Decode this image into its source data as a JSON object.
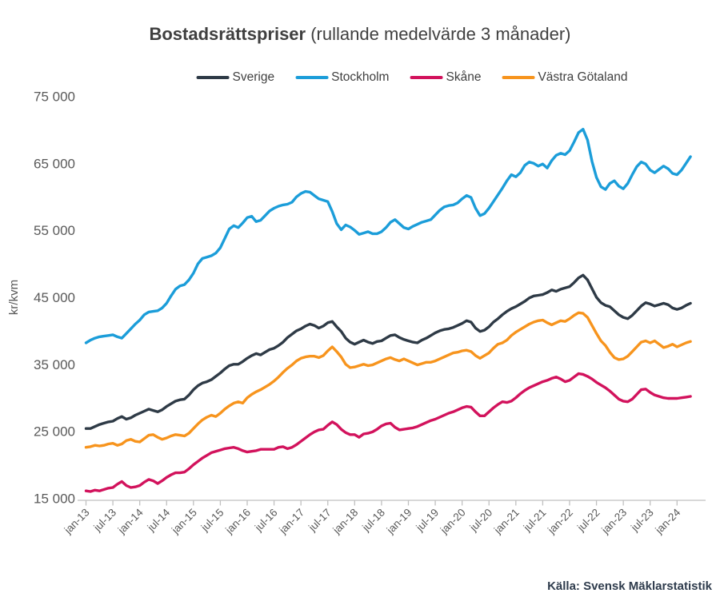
{
  "title": {
    "main": "Bostadsrättspriser",
    "suffix": " (rullande medelvärde 3 månader)"
  },
  "source": {
    "text": "Källa: Svensk Mäklarstatistik"
  },
  "legend": {
    "items": [
      {
        "label": "Sverige",
        "color": "#2e3a46"
      },
      {
        "label": "Stockholm",
        "color": "#1b9dd9"
      },
      {
        "label": "Skåne",
        "color": "#d2125c"
      },
      {
        "label": "Västra Götaland",
        "color": "#f7941d"
      }
    ]
  },
  "y_axis": {
    "label": "kr/kvm",
    "min": 15000,
    "max": 75000,
    "step": 10000,
    "tick_labels": [
      "15 000",
      "25 000",
      "35 000",
      "45 000",
      "55 000",
      "65 000",
      "75 000"
    ]
  },
  "x_axis": {
    "tick_labels": [
      "jan-13",
      "jul-13",
      "jan-14",
      "jul-14",
      "jan-15",
      "jul-15",
      "jan-16",
      "jul-16",
      "jan-17",
      "jul-17",
      "jan-18",
      "jul-18",
      "jan-19",
      "jul-19",
      "jan-20",
      "jul-20",
      "jan-21",
      "jul-21",
      "jan-22",
      "jul-22",
      "jan-23",
      "jul-23",
      "jan-24"
    ],
    "tick_interval_months": 6
  },
  "chart_data": {
    "type": "line",
    "title": "Bostadsrättspriser (rullande medelvärde 3 månader)",
    "ylabel": "kr/kvm",
    "ylim": [
      15000,
      75000
    ],
    "grid": false,
    "legend_position": "top",
    "x_unit": "month",
    "x_start": "2013-01",
    "x_end": "2024-04",
    "series": [
      {
        "name": "Sverige",
        "color": "#2e3a46",
        "values": [
          25400,
          25400,
          25700,
          26000,
          26200,
          26400,
          26500,
          26900,
          27200,
          26800,
          27000,
          27400,
          27700,
          28000,
          28300,
          28100,
          27900,
          28200,
          28700,
          29100,
          29500,
          29700,
          29800,
          30400,
          31200,
          31800,
          32200,
          32400,
          32700,
          33200,
          33700,
          34300,
          34800,
          35000,
          35000,
          35400,
          35900,
          36300,
          36600,
          36400,
          36800,
          37200,
          37400,
          37800,
          38300,
          39000,
          39500,
          40000,
          40300,
          40700,
          41000,
          40800,
          40400,
          40700,
          41200,
          41400,
          40600,
          39900,
          38900,
          38300,
          38000,
          38300,
          38600,
          38300,
          38100,
          38400,
          38500,
          38900,
          39300,
          39400,
          39000,
          38700,
          38500,
          38300,
          38200,
          38600,
          38900,
          39300,
          39700,
          40000,
          40200,
          40300,
          40500,
          40800,
          41100,
          41500,
          41300,
          40400,
          39900,
          40100,
          40600,
          41300,
          41800,
          42400,
          42900,
          43300,
          43600,
          44000,
          44400,
          44900,
          45200,
          45300,
          45400,
          45700,
          46100,
          45900,
          46200,
          46400,
          46600,
          47200,
          47900,
          48300,
          47600,
          46300,
          45000,
          44200,
          43800,
          43600,
          43000,
          42400,
          42000,
          41800,
          42300,
          43000,
          43700,
          44200,
          44000,
          43700,
          43900,
          44100,
          43900,
          43400,
          43200,
          43400,
          43800,
          44100
        ]
      },
      {
        "name": "Stockholm",
        "color": "#1b9dd9",
        "values": [
          38200,
          38600,
          38900,
          39100,
          39200,
          39300,
          39400,
          39100,
          38900,
          39600,
          40300,
          41000,
          41600,
          42400,
          42800,
          42900,
          43000,
          43400,
          44100,
          45200,
          46200,
          46700,
          46900,
          47600,
          48600,
          50000,
          50800,
          51000,
          51200,
          51600,
          52400,
          53800,
          55200,
          55700,
          55400,
          56100,
          56900,
          57100,
          56300,
          56500,
          57200,
          57900,
          58300,
          58600,
          58800,
          58900,
          59200,
          60000,
          60500,
          60800,
          60700,
          60200,
          59700,
          59500,
          59300,
          57800,
          56000,
          55100,
          55800,
          55500,
          55000,
          54400,
          54600,
          54800,
          54500,
          54500,
          54800,
          55400,
          56200,
          56600,
          56000,
          55400,
          55200,
          55600,
          55900,
          56200,
          56400,
          56600,
          57300,
          58000,
          58500,
          58700,
          58800,
          59100,
          59700,
          60200,
          59900,
          58300,
          57200,
          57500,
          58300,
          59300,
          60300,
          61300,
          62400,
          63300,
          63000,
          63600,
          64700,
          65200,
          65000,
          64600,
          64900,
          64300,
          65400,
          66200,
          66500,
          66300,
          66900,
          68200,
          69600,
          70100,
          68500,
          65300,
          62900,
          61500,
          61100,
          62000,
          62400,
          61600,
          61200,
          62000,
          63300,
          64500,
          65200,
          64900,
          64000,
          63600,
          64100,
          64600,
          64200,
          63500,
          63300,
          64000,
          65000,
          66000
        ]
      },
      {
        "name": "Skåne",
        "color": "#d2125c",
        "values": [
          16100,
          16000,
          16200,
          16100,
          16300,
          16500,
          16600,
          17100,
          17500,
          16900,
          16600,
          16700,
          16900,
          17400,
          17800,
          17600,
          17200,
          17600,
          18100,
          18500,
          18800,
          18800,
          18900,
          19400,
          20000,
          20500,
          21000,
          21400,
          21800,
          22000,
          22200,
          22400,
          22500,
          22600,
          22400,
          22100,
          21900,
          22000,
          22100,
          22300,
          22300,
          22300,
          22300,
          22600,
          22700,
          22400,
          22600,
          23000,
          23500,
          24000,
          24500,
          24900,
          25200,
          25300,
          25900,
          26400,
          26000,
          25300,
          24800,
          24500,
          24500,
          24100,
          24600,
          24700,
          24900,
          25300,
          25800,
          26100,
          26200,
          25600,
          25200,
          25300,
          25400,
          25500,
          25700,
          26000,
          26300,
          26600,
          26800,
          27100,
          27400,
          27700,
          27900,
          28200,
          28500,
          28700,
          28600,
          27900,
          27300,
          27300,
          27900,
          28500,
          29000,
          29400,
          29300,
          29500,
          30000,
          30600,
          31100,
          31500,
          31800,
          32100,
          32400,
          32600,
          32900,
          33100,
          32800,
          32400,
          32600,
          33100,
          33600,
          33500,
          33200,
          32800,
          32300,
          31900,
          31500,
          31000,
          30400,
          29800,
          29500,
          29400,
          29800,
          30500,
          31200,
          31300,
          30800,
          30400,
          30200,
          30000,
          29900,
          29900,
          29900,
          30000,
          30100,
          30200
        ]
      },
      {
        "name": "Västra Götaland",
        "color": "#f7941d",
        "values": [
          22600,
          22700,
          22900,
          22800,
          22900,
          23100,
          23200,
          22900,
          23100,
          23600,
          23800,
          23500,
          23400,
          23900,
          24400,
          24500,
          24100,
          23800,
          24000,
          24300,
          24500,
          24400,
          24300,
          24700,
          25400,
          26100,
          26700,
          27100,
          27400,
          27200,
          27700,
          28300,
          28800,
          29200,
          29400,
          29200,
          30000,
          30500,
          30900,
          31200,
          31600,
          32000,
          32500,
          33100,
          33800,
          34400,
          34900,
          35500,
          35900,
          36100,
          36200,
          36200,
          36000,
          36300,
          37000,
          37600,
          36900,
          36100,
          35000,
          34500,
          34600,
          34800,
          35000,
          34800,
          34900,
          35200,
          35500,
          35800,
          36000,
          35700,
          35500,
          35800,
          35500,
          35200,
          34900,
          35100,
          35300,
          35300,
          35500,
          35800,
          36100,
          36400,
          36700,
          36800,
          37000,
          37100,
          36900,
          36300,
          35900,
          36300,
          36700,
          37400,
          38000,
          38200,
          38600,
          39300,
          39800,
          40200,
          40600,
          41000,
          41300,
          41500,
          41600,
          41200,
          40900,
          41200,
          41500,
          41400,
          41800,
          42300,
          42700,
          42600,
          42000,
          40800,
          39600,
          38500,
          37800,
          36800,
          36000,
          35700,
          35800,
          36200,
          36900,
          37600,
          38300,
          38500,
          38200,
          38500,
          38000,
          37500,
          37700,
          38000,
          37600,
          37900,
          38200,
          38400
        ]
      }
    ]
  },
  "plot_style": {
    "axis_color": "#c0c0c0",
    "tick_label_color": "#595959",
    "y_label_color": "#595959",
    "line_width": 3.4
  }
}
